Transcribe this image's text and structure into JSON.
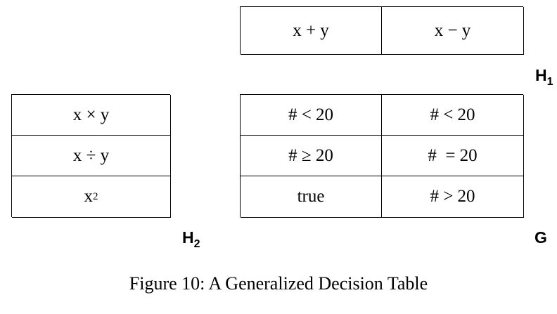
{
  "tables": {
    "h1": {
      "label_main": "H",
      "label_sub": "1",
      "cells": [
        "x + y",
        "x − y"
      ]
    },
    "h2": {
      "label_main": "H",
      "label_sub": "2",
      "cells": [
        "x × y",
        "x ÷ y"
      ],
      "last_base": "x",
      "last_exponent": "2"
    },
    "g": {
      "label": "G",
      "cells": [
        [
          "# < 20",
          "# < 20"
        ],
        [
          "# ≥ 20",
          "#  = 20"
        ],
        [
          "true",
          "# > 20"
        ]
      ]
    }
  },
  "caption": "Figure 10: A Generalized Decision Table"
}
